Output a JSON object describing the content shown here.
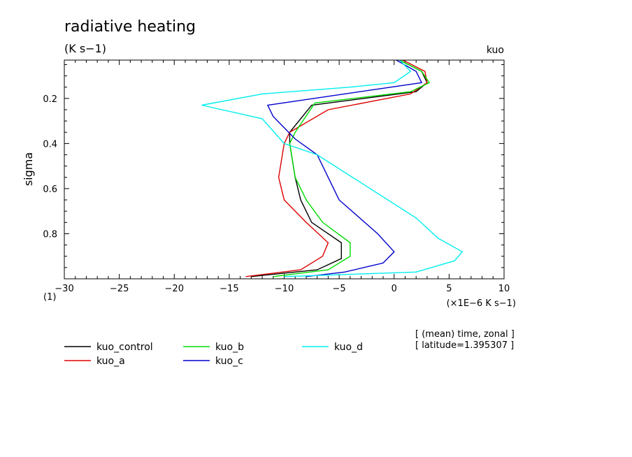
{
  "chart_data": {
    "type": "line",
    "title": "radiative heating",
    "units": "(K s−1)",
    "corner_label": "kuo",
    "xlabel": "(×1E−6 K s−1)",
    "ylabel": "sigma",
    "corner_index": "(1)",
    "xlim": [
      -30,
      10
    ],
    "ylim": [
      1.0,
      0.03
    ],
    "xticks": [
      -30,
      -25,
      -20,
      -15,
      -10,
      -5,
      0,
      5,
      10
    ],
    "xtick_labels": [
      "−30",
      "−25",
      "−20",
      "−15",
      "−10",
      "−5",
      "0",
      "5",
      "10"
    ],
    "yticks": [
      0.2,
      0.4,
      0.6,
      0.8
    ],
    "ytick_labels": [
      "0.2",
      "0.4",
      "0.6",
      "0.8"
    ],
    "info": [
      "[ (mean) time, zonal ]",
      "[ latitude=1.395307 ]"
    ],
    "series": [
      {
        "name": "kuo_control",
        "color": "#000000",
        "x": [
          0.5,
          2.5,
          3.0,
          2.0,
          -7.5,
          -9.5,
          -9.5,
          -9.0,
          -8.5,
          -7.5,
          -4.8,
          -4.8,
          -7.0,
          -13.0
        ],
        "sigma": [
          0.03,
          0.08,
          0.13,
          0.17,
          0.23,
          0.35,
          0.4,
          0.55,
          0.65,
          0.75,
          0.84,
          0.91,
          0.96,
          0.99
        ]
      },
      {
        "name": "kuo_a",
        "color": "#dd0000",
        "x": [
          0.8,
          2.8,
          3.0,
          1.5,
          -6.0,
          -9.5,
          -10.0,
          -10.5,
          -10.0,
          -8.0,
          -6.0,
          -6.5,
          -8.5,
          -13.5
        ],
        "sigma": [
          0.03,
          0.08,
          0.13,
          0.18,
          0.25,
          0.35,
          0.4,
          0.55,
          0.65,
          0.75,
          0.84,
          0.9,
          0.96,
          0.99
        ]
      },
      {
        "name": "kuo_b",
        "color": "#00dd00",
        "x": [
          0.5,
          2.5,
          3.2,
          1.5,
          -7.2,
          -9.0,
          -9.5,
          -9.0,
          -8.0,
          -6.5,
          -4.0,
          -4.0,
          -6.0,
          -11.0
        ],
        "sigma": [
          0.03,
          0.08,
          0.13,
          0.17,
          0.22,
          0.35,
          0.4,
          0.55,
          0.65,
          0.75,
          0.84,
          0.9,
          0.96,
          0.99
        ]
      },
      {
        "name": "kuo_c",
        "color": "#0000cc",
        "x": [
          0.2,
          2.0,
          2.5,
          -11.5,
          -11.0,
          -10.0,
          -9.0,
          -7.0,
          -5.0,
          -1.5,
          0.0,
          -1.0,
          -4.5,
          -8.0
        ],
        "sigma": [
          0.03,
          0.08,
          0.13,
          0.23,
          0.28,
          0.33,
          0.38,
          0.45,
          0.65,
          0.8,
          0.88,
          0.93,
          0.97,
          0.99
        ]
      },
      {
        "name": "kuo_d",
        "color": "#00eeee",
        "x": [
          0.5,
          1.5,
          0.0,
          -4.0,
          -12.0,
          -17.5,
          -12.0,
          -10.0,
          -7.0,
          2.0,
          4.0,
          6.2,
          5.5,
          2.0,
          -10.0
        ],
        "sigma": [
          0.03,
          0.08,
          0.13,
          0.15,
          0.18,
          0.23,
          0.29,
          0.4,
          0.45,
          0.73,
          0.82,
          0.88,
          0.92,
          0.97,
          0.99
        ]
      }
    ]
  }
}
